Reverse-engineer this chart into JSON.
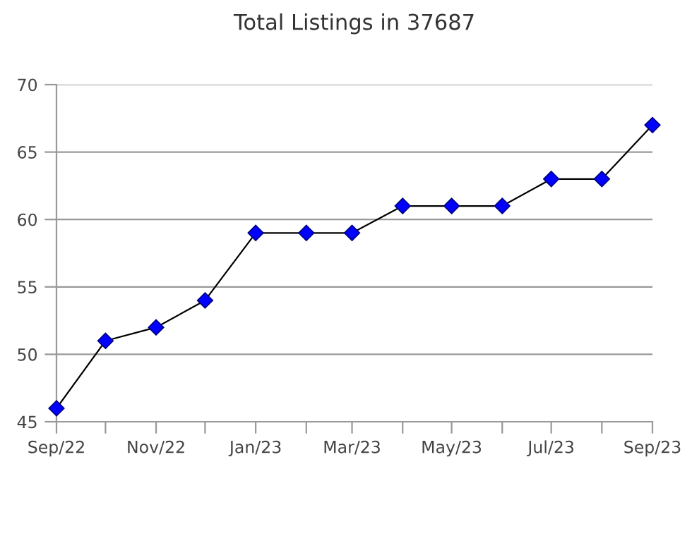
{
  "chart_data": {
    "type": "line",
    "title": "Total Listings in 37687",
    "x": [
      "2022-09",
      "2022-10",
      "2022-11",
      "2022-12",
      "2023-01",
      "2023-02",
      "2023-03",
      "2023-04",
      "2023-05",
      "2023-06",
      "2023-07",
      "2023-08",
      "2023-09"
    ],
    "series": [
      {
        "color": "#0000ff",
        "values": [
          46,
          51,
          52,
          54,
          59,
          59,
          59,
          61,
          61,
          61,
          63,
          63,
          67
        ]
      }
    ],
    "xlim": [
      "2022-09",
      "2023-09"
    ],
    "xticks": [
      {
        "value": "2022-09",
        "label": "Sep/22"
      },
      {
        "value": "2022-10",
        "label": null
      },
      {
        "value": "2022-11",
        "label": "Nov/22"
      },
      {
        "value": "2022-12",
        "label": null
      },
      {
        "value": "2023-01",
        "label": "Jan/23"
      },
      {
        "value": "2023-02",
        "label": null
      },
      {
        "value": "2023-03",
        "label": "Mar/23"
      },
      {
        "value": "2023-04",
        "label": null
      },
      {
        "value": "2023-05",
        "label": "May/23"
      },
      {
        "value": "2023-06",
        "label": null
      },
      {
        "value": "2023-07",
        "label": "Jul/23"
      },
      {
        "value": "2023-08",
        "label": null
      },
      {
        "value": "2023-09",
        "label": "Sep/23"
      }
    ],
    "ylim": [
      45,
      70
    ],
    "yticks": [
      45,
      50,
      55,
      60,
      65,
      70
    ],
    "grid": "y",
    "marker": "diamond",
    "line_style": "solid",
    "legend": false
  }
}
